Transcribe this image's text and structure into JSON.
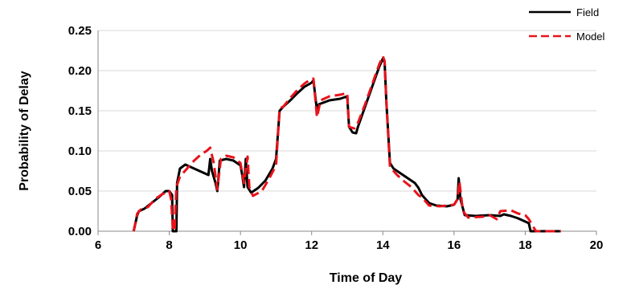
{
  "chart_data": {
    "type": "line",
    "xlabel": "Time of Day",
    "ylabel": "Probability of Delay",
    "xlim": [
      6,
      20
    ],
    "ylim": [
      0,
      0.25
    ],
    "x_ticks": [
      "6",
      "8",
      "10",
      "12",
      "14",
      "16",
      "18",
      "20"
    ],
    "y_ticks": [
      "0.00",
      "0.05",
      "0.10",
      "0.15",
      "0.20",
      "0.25"
    ],
    "grid": "horizontal",
    "legend_position": "top-right",
    "series": [
      {
        "name": "Field",
        "color": "#000000",
        "style": "solid",
        "points": [
          [
            7.0,
            0.0
          ],
          [
            7.1,
            0.02
          ],
          [
            7.15,
            0.025
          ],
          [
            7.3,
            0.028
          ],
          [
            7.5,
            0.035
          ],
          [
            7.7,
            0.042
          ],
          [
            7.9,
            0.05
          ],
          [
            8.0,
            0.05
          ],
          [
            8.08,
            0.045
          ],
          [
            8.1,
            0.0
          ],
          [
            8.2,
            0.0
          ],
          [
            8.22,
            0.06
          ],
          [
            8.3,
            0.078
          ],
          [
            8.45,
            0.083
          ],
          [
            8.7,
            0.078
          ],
          [
            8.9,
            0.074
          ],
          [
            9.0,
            0.072
          ],
          [
            9.1,
            0.07
          ],
          [
            9.15,
            0.09
          ],
          [
            9.2,
            0.075
          ],
          [
            9.3,
            0.06
          ],
          [
            9.35,
            0.05
          ],
          [
            9.42,
            0.088
          ],
          [
            9.6,
            0.09
          ],
          [
            9.8,
            0.088
          ],
          [
            10.0,
            0.082
          ],
          [
            10.05,
            0.07
          ],
          [
            10.1,
            0.055
          ],
          [
            10.15,
            0.09
          ],
          [
            10.2,
            0.055
          ],
          [
            10.3,
            0.048
          ],
          [
            10.5,
            0.054
          ],
          [
            10.7,
            0.063
          ],
          [
            10.9,
            0.078
          ],
          [
            11.0,
            0.09
          ],
          [
            11.1,
            0.15
          ],
          [
            11.2,
            0.155
          ],
          [
            11.4,
            0.163
          ],
          [
            11.6,
            0.172
          ],
          [
            11.8,
            0.18
          ],
          [
            12.0,
            0.185
          ],
          [
            12.05,
            0.188
          ],
          [
            12.15,
            0.15
          ],
          [
            12.2,
            0.158
          ],
          [
            12.5,
            0.163
          ],
          [
            12.8,
            0.165
          ],
          [
            13.0,
            0.168
          ],
          [
            13.05,
            0.13
          ],
          [
            13.15,
            0.123
          ],
          [
            13.25,
            0.122
          ],
          [
            13.3,
            0.13
          ],
          [
            13.5,
            0.155
          ],
          [
            13.7,
            0.18
          ],
          [
            13.9,
            0.205
          ],
          [
            14.0,
            0.215
          ],
          [
            14.05,
            0.21
          ],
          [
            14.1,
            0.16
          ],
          [
            14.2,
            0.085
          ],
          [
            14.3,
            0.078
          ],
          [
            14.5,
            0.072
          ],
          [
            14.7,
            0.066
          ],
          [
            14.9,
            0.06
          ],
          [
            15.0,
            0.054
          ],
          [
            15.1,
            0.045
          ],
          [
            15.3,
            0.035
          ],
          [
            15.5,
            0.032
          ],
          [
            15.8,
            0.031
          ],
          [
            16.0,
            0.033
          ],
          [
            16.1,
            0.04
          ],
          [
            16.13,
            0.066
          ],
          [
            16.18,
            0.04
          ],
          [
            16.3,
            0.02
          ],
          [
            16.6,
            0.019
          ],
          [
            17.0,
            0.02
          ],
          [
            17.3,
            0.019
          ],
          [
            17.4,
            0.021
          ],
          [
            17.6,
            0.019
          ],
          [
            17.8,
            0.016
          ],
          [
            18.0,
            0.012
          ],
          [
            18.1,
            0.01
          ],
          [
            18.15,
            0.0
          ],
          [
            19.0,
            0.0
          ]
        ]
      },
      {
        "name": "Model",
        "color": "#e8131b",
        "style": "dashed",
        "points": [
          [
            7.0,
            0.0
          ],
          [
            7.1,
            0.022
          ],
          [
            7.2,
            0.027
          ],
          [
            7.4,
            0.03
          ],
          [
            7.6,
            0.04
          ],
          [
            7.8,
            0.046
          ],
          [
            8.0,
            0.05
          ],
          [
            8.05,
            0.04
          ],
          [
            8.1,
            0.005
          ],
          [
            8.15,
            0.0
          ],
          [
            8.2,
            0.055
          ],
          [
            8.3,
            0.068
          ],
          [
            8.5,
            0.078
          ],
          [
            8.7,
            0.088
          ],
          [
            8.9,
            0.096
          ],
          [
            9.05,
            0.1
          ],
          [
            9.15,
            0.104
          ],
          [
            9.25,
            0.085
          ],
          [
            9.35,
            0.052
          ],
          [
            9.45,
            0.09
          ],
          [
            9.6,
            0.094
          ],
          [
            9.8,
            0.092
          ],
          [
            10.0,
            0.085
          ],
          [
            10.1,
            0.06
          ],
          [
            10.2,
            0.093
          ],
          [
            10.25,
            0.055
          ],
          [
            10.35,
            0.044
          ],
          [
            10.6,
            0.05
          ],
          [
            10.8,
            0.065
          ],
          [
            11.0,
            0.082
          ],
          [
            11.1,
            0.153
          ],
          [
            11.2,
            0.155
          ],
          [
            11.4,
            0.166
          ],
          [
            11.6,
            0.176
          ],
          [
            11.8,
            0.184
          ],
          [
            12.0,
            0.19
          ],
          [
            12.05,
            0.19
          ],
          [
            12.15,
            0.142
          ],
          [
            12.25,
            0.163
          ],
          [
            12.5,
            0.168
          ],
          [
            12.8,
            0.17
          ],
          [
            13.0,
            0.172
          ],
          [
            13.05,
            0.13
          ],
          [
            13.2,
            0.128
          ],
          [
            13.3,
            0.135
          ],
          [
            13.5,
            0.158
          ],
          [
            13.7,
            0.183
          ],
          [
            13.9,
            0.208
          ],
          [
            14.0,
            0.218
          ],
          [
            14.05,
            0.212
          ],
          [
            14.1,
            0.16
          ],
          [
            14.2,
            0.08
          ],
          [
            14.4,
            0.07
          ],
          [
            14.6,
            0.062
          ],
          [
            14.8,
            0.055
          ],
          [
            15.0,
            0.045
          ],
          [
            15.1,
            0.042
          ],
          [
            15.3,
            0.032
          ],
          [
            15.6,
            0.031
          ],
          [
            16.0,
            0.033
          ],
          [
            16.1,
            0.04
          ],
          [
            16.15,
            0.062
          ],
          [
            16.25,
            0.025
          ],
          [
            16.4,
            0.017
          ],
          [
            16.8,
            0.018
          ],
          [
            17.0,
            0.02
          ],
          [
            17.2,
            0.015
          ],
          [
            17.3,
            0.025
          ],
          [
            17.6,
            0.026
          ],
          [
            17.8,
            0.022
          ],
          [
            18.0,
            0.02
          ],
          [
            18.1,
            0.015
          ],
          [
            18.3,
            0.0
          ],
          [
            19.0,
            0.0
          ]
        ]
      }
    ]
  }
}
